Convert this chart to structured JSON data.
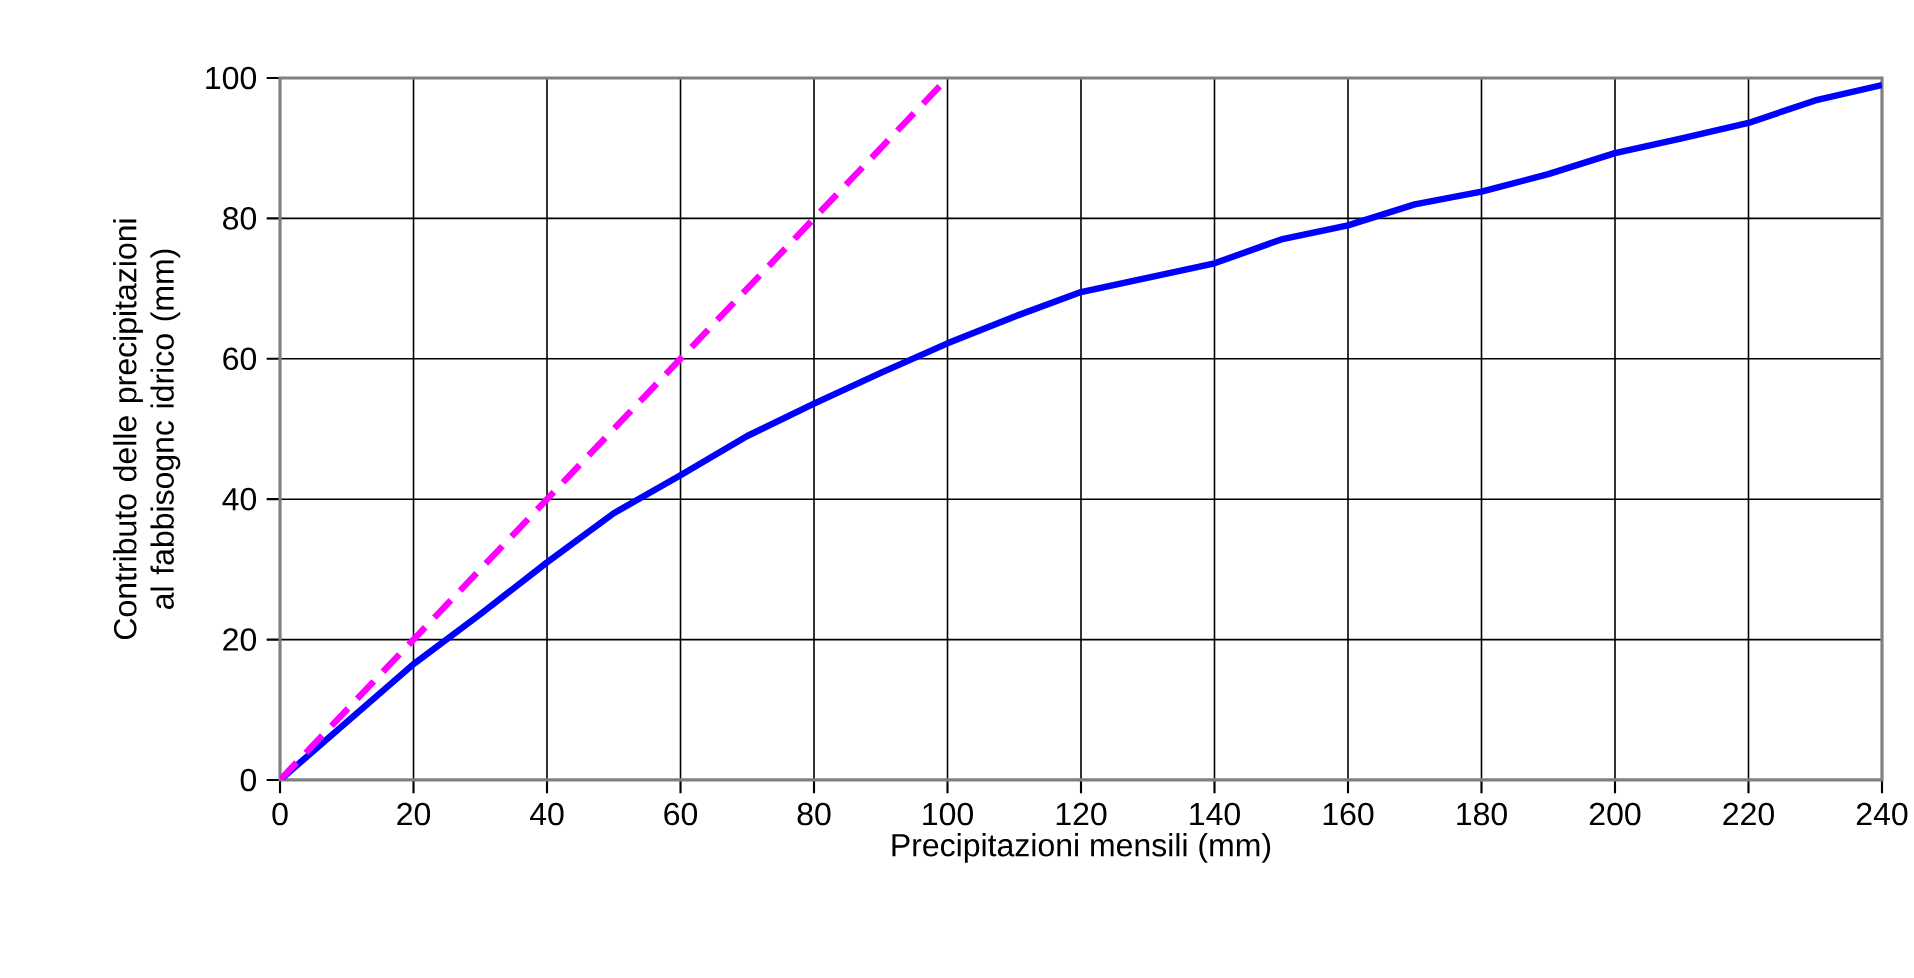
{
  "chart_data": {
    "type": "line",
    "xlabel": "Precipitazioni mensili (mm)",
    "ylabel": "Contributo delle precipitazioni al fabbisognc idrico (mm)",
    "xlim": [
      0,
      240
    ],
    "xticks": [
      0,
      20,
      40,
      60,
      80,
      100,
      120,
      140,
      160,
      180,
      200,
      220,
      240
    ],
    "ylim": [
      0,
      100
    ],
    "yticks": [
      0,
      20,
      40,
      60,
      80,
      100
    ],
    "grid": true,
    "marker": "none",
    "series": [
      {
        "color": "#0000ff",
        "line_style": "solid",
        "x": [
          0,
          20,
          30,
          40,
          50,
          60,
          70,
          80,
          90,
          100,
          110,
          120,
          140,
          150,
          160,
          170,
          180,
          190,
          200,
          210,
          220,
          230,
          240
        ],
        "values": [
          0,
          16.5,
          23.6,
          31,
          38,
          43.4,
          49,
          53.6,
          58,
          62.2,
          66,
          69.5,
          73.6,
          77,
          79,
          82,
          83.8,
          86.3,
          89.3,
          91.4,
          93.6,
          96.8,
          99
        ]
      },
      {
        "color": "#ff00ff",
        "line_style": "dashed",
        "x": [
          0,
          20,
          40,
          60,
          80,
          100
        ],
        "values": [
          0,
          20,
          40,
          60,
          80,
          100
        ]
      }
    ]
  }
}
